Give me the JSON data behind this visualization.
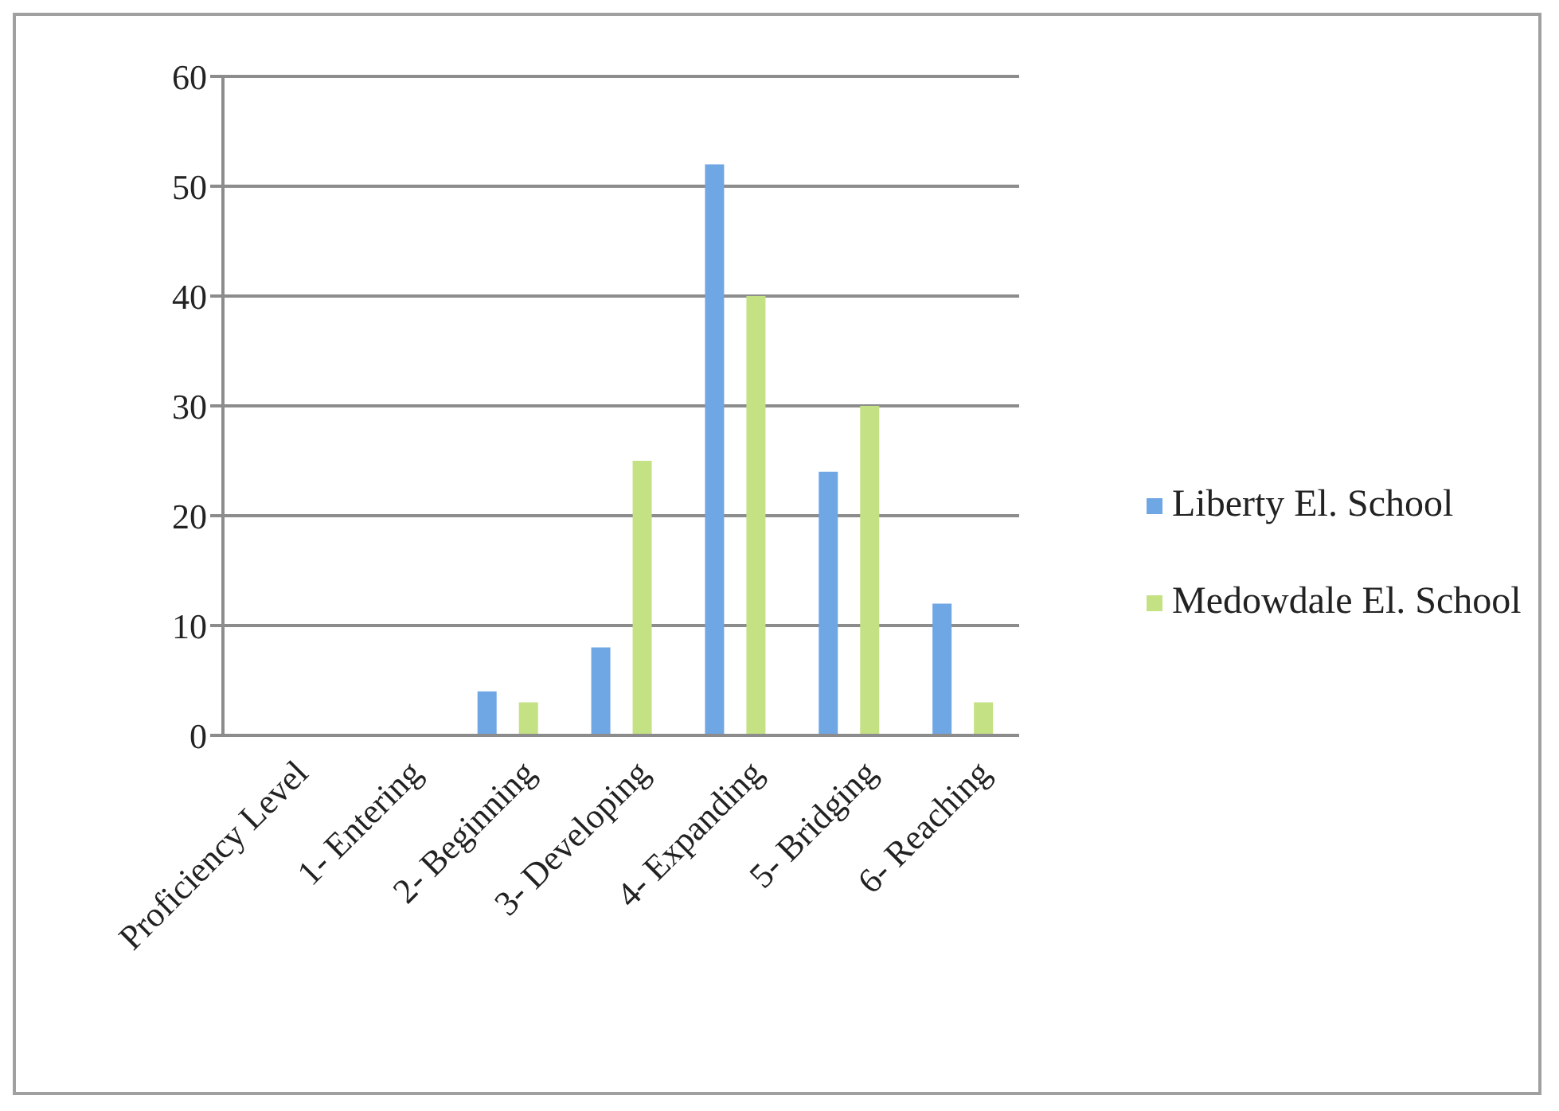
{
  "chart_data": {
    "type": "bar",
    "categories": [
      "Proficiency Level",
      "1- Entering",
      "2- Beginning",
      "3- Developing",
      "4- Expanding",
      "5- Bridging",
      "6- Reaching"
    ],
    "series": [
      {
        "name": "Liberty El. School",
        "color": "#6fa6e4",
        "values": [
          0,
          0,
          4,
          8,
          52,
          24,
          12
        ]
      },
      {
        "name": "Medowdale El. School",
        "color": "#c4e184",
        "values": [
          0,
          0,
          3,
          25,
          40,
          30,
          3
        ]
      }
    ],
    "ylim": [
      0,
      60
    ],
    "yticks": [
      0,
      10,
      20,
      30,
      40,
      50,
      60
    ],
    "grid": "y",
    "legend": "right"
  }
}
